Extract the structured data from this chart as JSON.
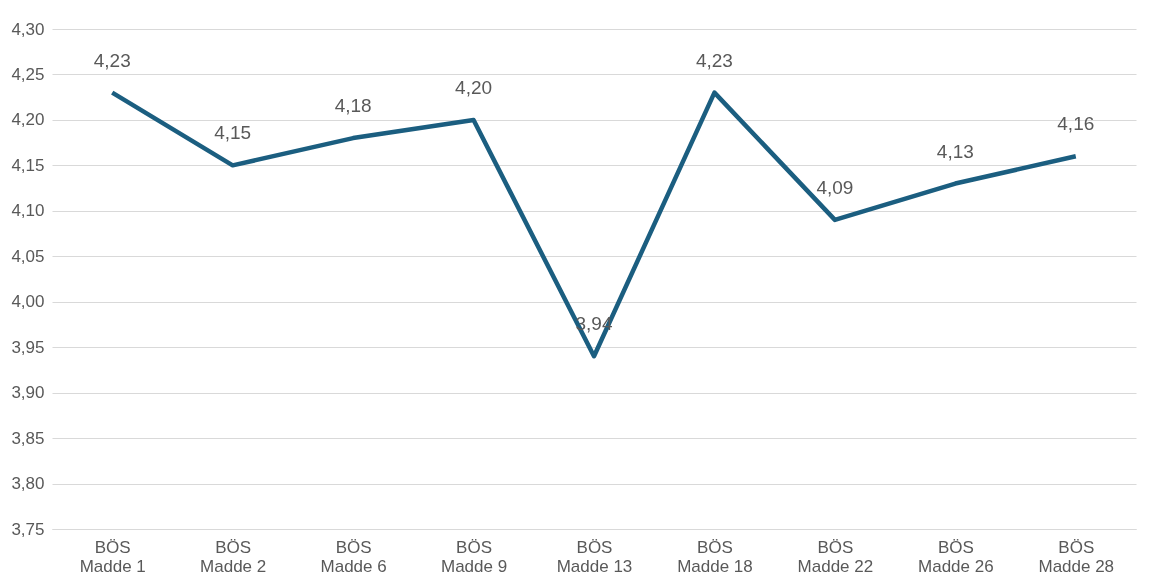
{
  "chart_data": {
    "type": "line",
    "categories": [
      "BÖS Madde 1",
      "BÖS Madde 2",
      "BÖS Madde 6",
      "BÖS Madde 9",
      "BÖS Madde 13",
      "BÖS Madde 18",
      "BÖS Madde 22",
      "BÖS Madde 26",
      "BÖS Madde 28"
    ],
    "series": [
      {
        "color": "#1b5e80",
        "values": [
          4.23,
          4.15,
          4.18,
          4.2,
          3.94,
          4.23,
          4.09,
          4.13,
          4.16
        ],
        "value_labels": [
          "4,23",
          "4,15",
          "4,18",
          "4,20",
          "3,94",
          "4,23",
          "4,09",
          "4,13",
          "4,16"
        ]
      }
    ],
    "ylim": [
      3.75,
      4.3
    ],
    "yticks": [
      {
        "value": 3.75,
        "label": "3,75"
      },
      {
        "value": 3.8,
        "label": "3,80"
      },
      {
        "value": 3.85,
        "label": "3,85"
      },
      {
        "value": 3.9,
        "label": "3,90"
      },
      {
        "value": 3.95,
        "label": "3,95"
      },
      {
        "value": 4.0,
        "label": "4,00"
      },
      {
        "value": 4.05,
        "label": "4,05"
      },
      {
        "value": 4.1,
        "label": "4,10"
      },
      {
        "value": 4.15,
        "label": "4,15"
      },
      {
        "value": 4.2,
        "label": "4,20"
      },
      {
        "value": 4.25,
        "label": "4,25"
      },
      {
        "value": 4.3,
        "label": "4,30"
      }
    ],
    "grid": "y",
    "marker": "none",
    "line_style": "solid",
    "legend": false
  }
}
